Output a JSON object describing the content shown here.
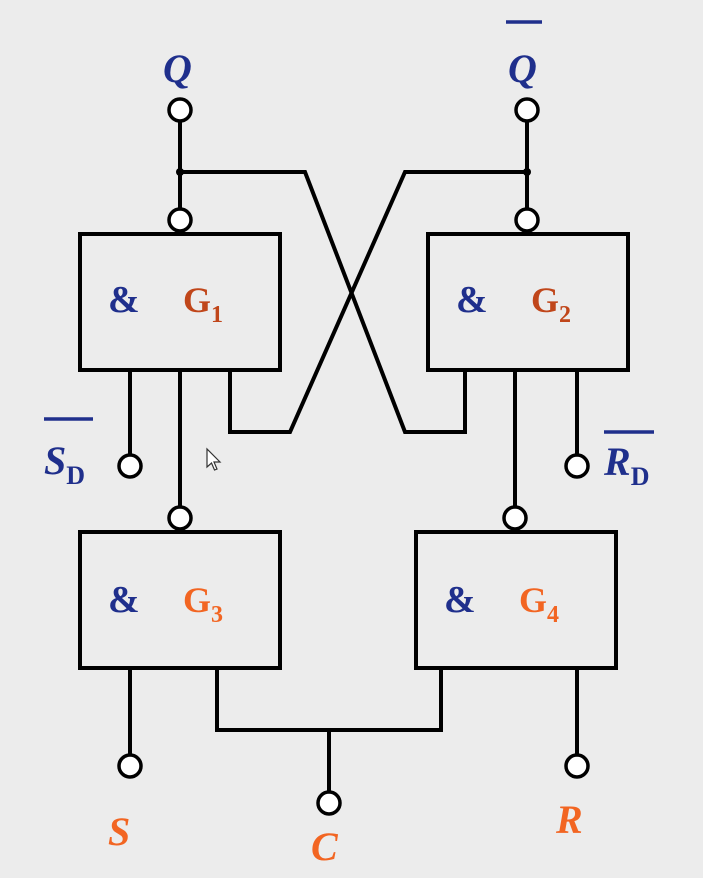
{
  "gates": {
    "g1": {
      "symbol": "&",
      "name": "G",
      "sub": "1"
    },
    "g2": {
      "symbol": "&",
      "name": "G",
      "sub": "2"
    },
    "g3": {
      "symbol": "&",
      "name": "G",
      "sub": "3"
    },
    "g4": {
      "symbol": "&",
      "name": "G",
      "sub": "4"
    }
  },
  "terminals": {
    "q": "Q",
    "q_bar": "Q",
    "sd_bar": {
      "main": "S",
      "sub": "D"
    },
    "rd_bar": {
      "main": "R",
      "sub": "D"
    },
    "s": "S",
    "c": "C",
    "r": "R"
  },
  "colors": {
    "label_blue": "#1f2f8c",
    "gate_name_dark_orange": "#c0461a",
    "input_orange": "#f26522",
    "background": "#ececec"
  }
}
